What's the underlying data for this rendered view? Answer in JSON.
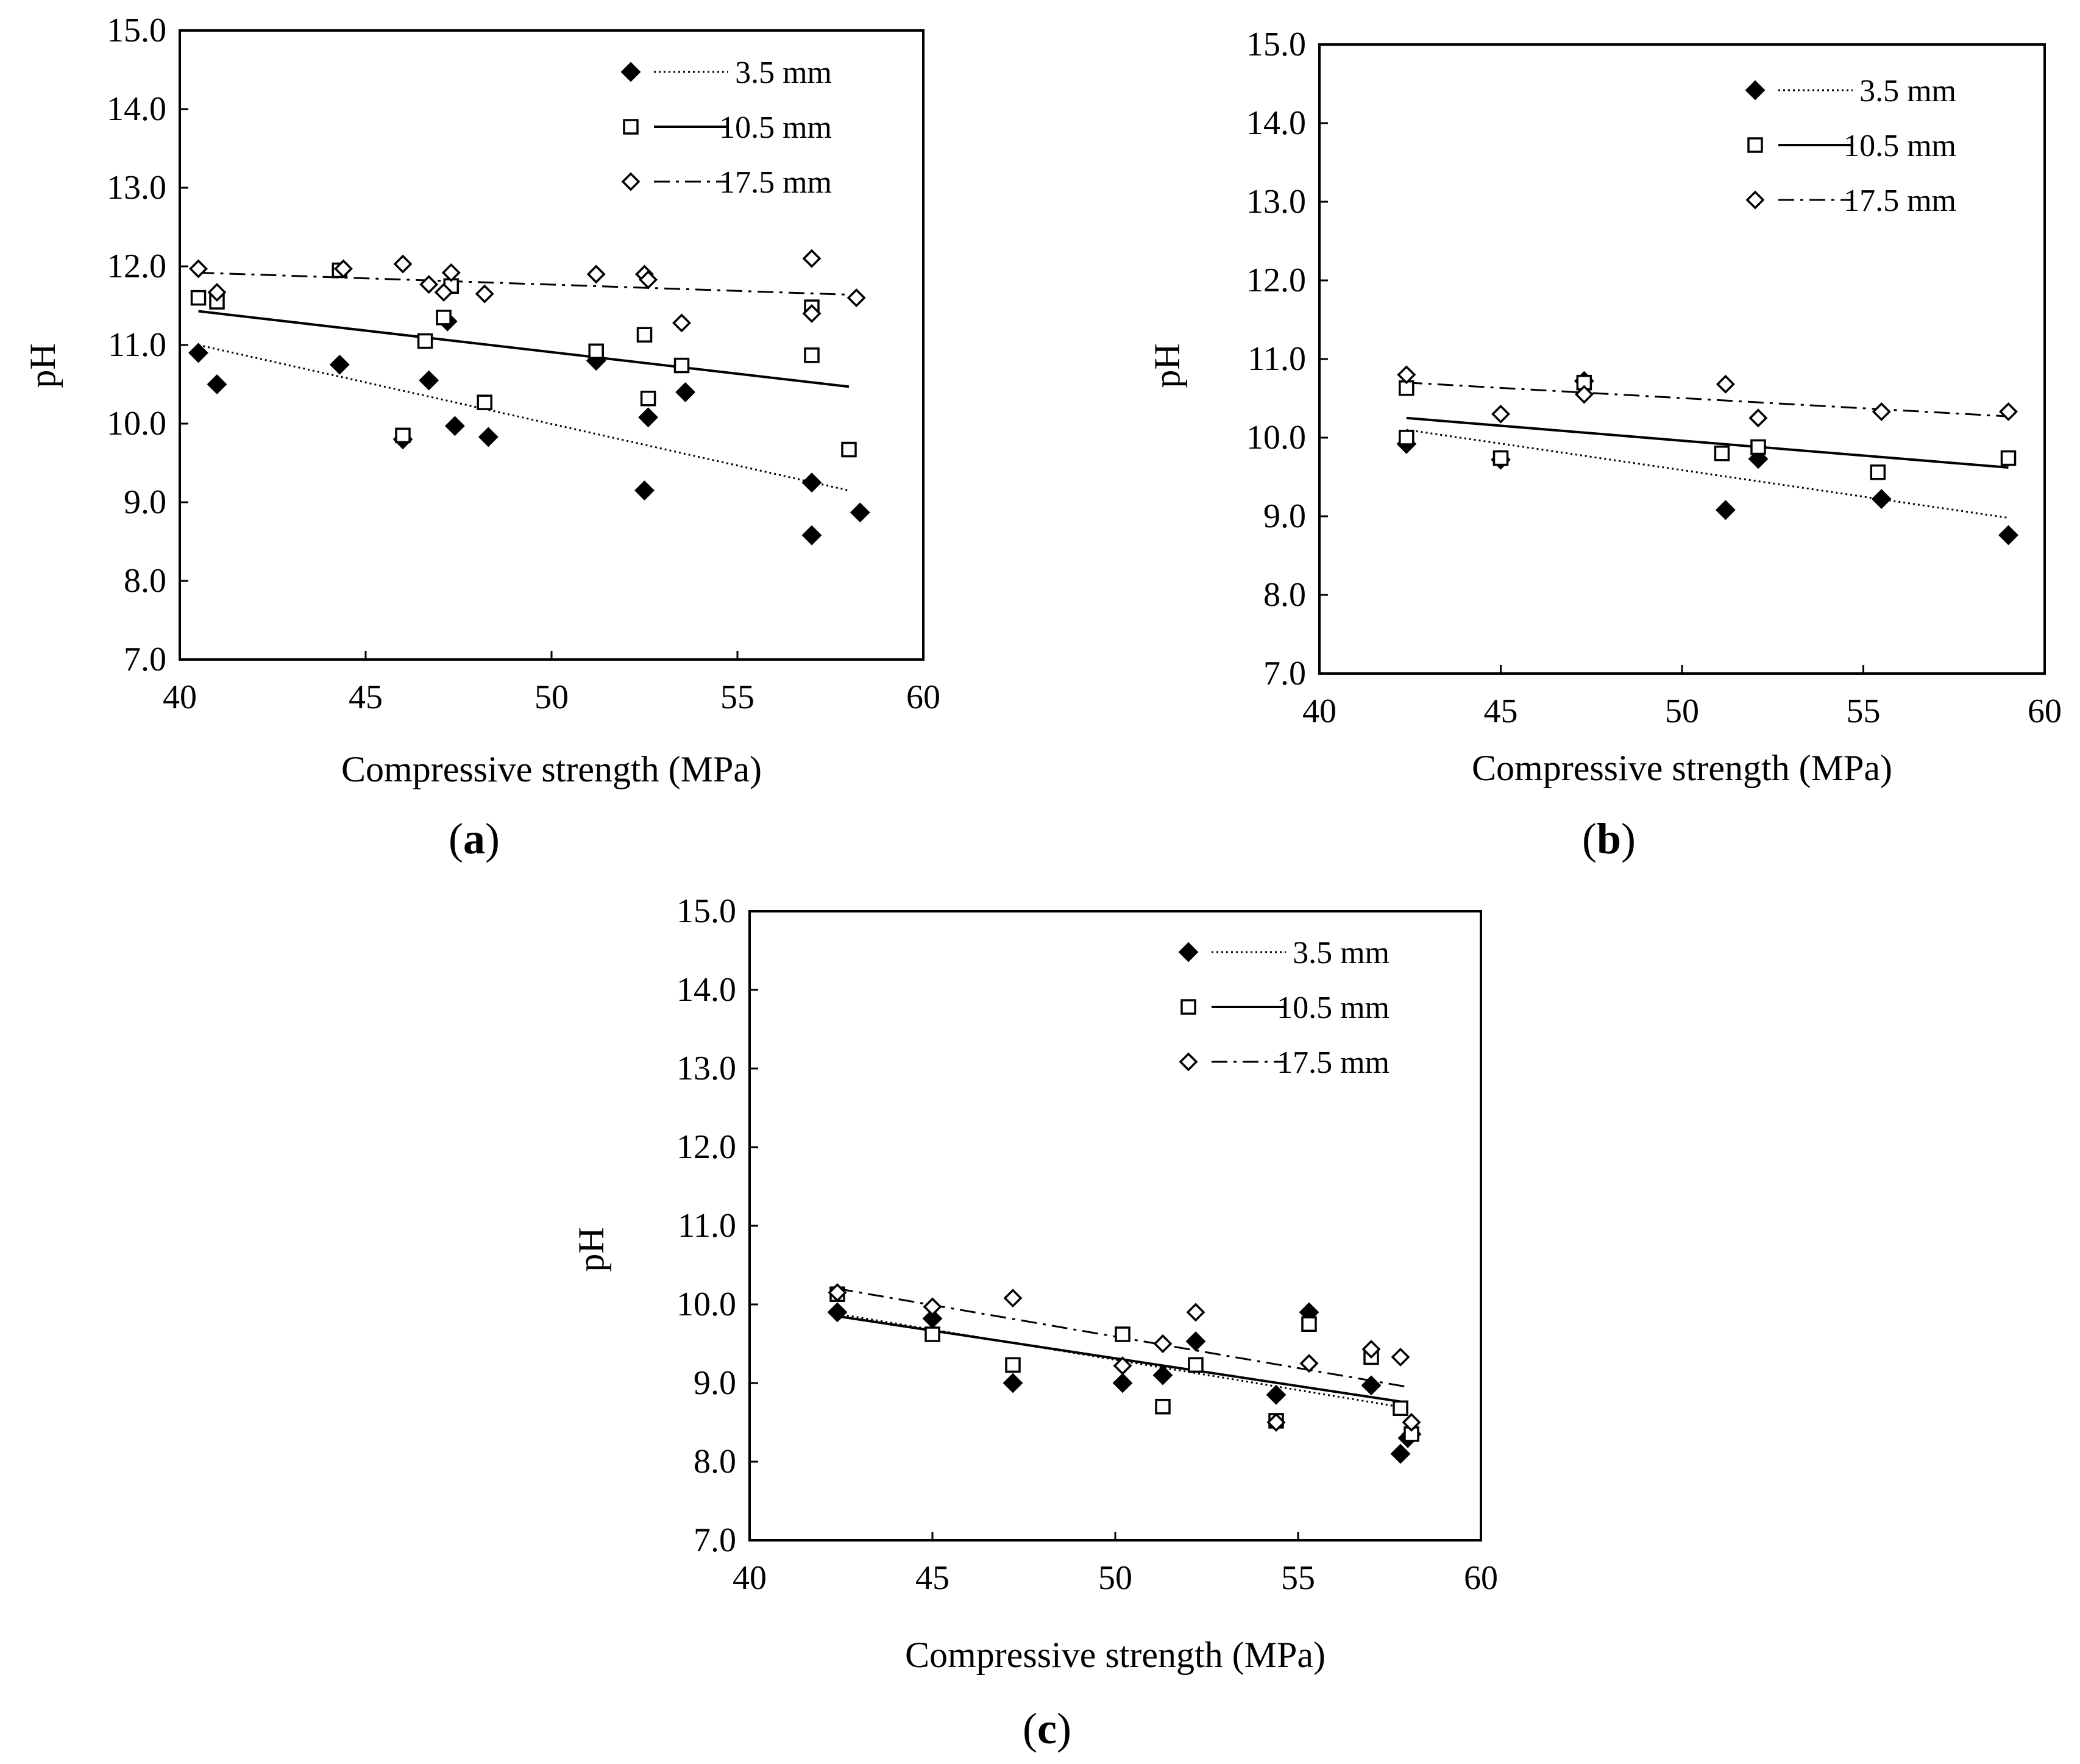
{
  "figure": {
    "panels": [
      "a",
      "b",
      "c"
    ]
  },
  "chart_data": [
    {
      "panel": "a",
      "label_open": "(",
      "label_letter": "a",
      "label_close": ")",
      "type": "scatter",
      "xlabel": "Compressive strength (MPa)",
      "ylabel": "pH",
      "xlim": [
        40,
        60
      ],
      "ylim": [
        7,
        15
      ],
      "xticks": [
        "40",
        "45",
        "50",
        "55",
        "60"
      ],
      "yticks": [
        "7.0",
        "8.0",
        "9.0",
        "10.0",
        "11.0",
        "12.0",
        "13.0",
        "14.0",
        "15.0"
      ],
      "legend_position": "top-right",
      "series": [
        {
          "name": "3.5 mm",
          "marker": "filled-diamond",
          "line": "dotted",
          "points": [
            [
              40.5,
              10.9
            ],
            [
              41.0,
              10.5
            ],
            [
              44.3,
              10.75
            ],
            [
              46.0,
              9.8
            ],
            [
              46.7,
              10.55
            ],
            [
              47.2,
              11.3
            ],
            [
              47.4,
              9.97
            ],
            [
              48.3,
              9.83
            ],
            [
              51.2,
              10.8
            ],
            [
              52.5,
              9.15
            ],
            [
              52.6,
              10.08
            ],
            [
              53.6,
              10.4
            ],
            [
              57.0,
              9.25
            ],
            [
              57.0,
              8.58
            ],
            [
              58.3,
              8.87
            ]
          ],
          "trend": [
            [
              40.5,
              11.0
            ],
            [
              58.0,
              9.15
            ]
          ]
        },
        {
          "name": "10.5 mm",
          "marker": "open-square",
          "line": "solid",
          "points": [
            [
              40.5,
              11.6
            ],
            [
              41.0,
              11.55
            ],
            [
              44.3,
              11.95
            ],
            [
              46.0,
              9.85
            ],
            [
              46.6,
              11.05
            ],
            [
              47.1,
              11.35
            ],
            [
              47.3,
              11.75
            ],
            [
              48.2,
              10.27
            ],
            [
              51.2,
              10.92
            ],
            [
              52.5,
              11.13
            ],
            [
              52.6,
              10.32
            ],
            [
              53.5,
              10.74
            ],
            [
              57.0,
              11.48
            ],
            [
              57.0,
              10.87
            ],
            [
              58.0,
              9.67
            ]
          ],
          "trend": [
            [
              40.5,
              11.43
            ],
            [
              58.0,
              10.47
            ]
          ]
        },
        {
          "name": "17.5 mm",
          "marker": "open-diamond",
          "line": "dashdot",
          "points": [
            [
              40.5,
              11.97
            ],
            [
              41.0,
              11.67
            ],
            [
              44.4,
              11.97
            ],
            [
              46.0,
              12.03
            ],
            [
              46.7,
              11.77
            ],
            [
              47.1,
              11.67
            ],
            [
              47.3,
              11.92
            ],
            [
              48.2,
              11.65
            ],
            [
              51.2,
              11.9
            ],
            [
              52.5,
              11.9
            ],
            [
              52.6,
              11.83
            ],
            [
              53.5,
              11.28
            ],
            [
              57.0,
              12.1
            ],
            [
              57.0,
              11.4
            ],
            [
              58.2,
              11.6
            ]
          ],
          "trend": [
            [
              40.5,
              11.92
            ],
            [
              58.0,
              11.64
            ]
          ]
        }
      ]
    },
    {
      "panel": "b",
      "label_open": "(",
      "label_letter": "b",
      "label_close": ")",
      "type": "scatter",
      "xlabel": "Compressive strength (MPa)",
      "ylabel": "pH",
      "xlim": [
        40,
        60
      ],
      "ylim": [
        7,
        15
      ],
      "xticks": [
        "40",
        "45",
        "50",
        "55",
        "60"
      ],
      "yticks": [
        "7.0",
        "8.0",
        "9.0",
        "10.0",
        "11.0",
        "12.0",
        "13.0",
        "14.0",
        "15.0"
      ],
      "legend_position": "top-right",
      "series": [
        {
          "name": "3.5 mm",
          "marker": "filled-diamond",
          "line": "dotted",
          "points": [
            [
              42.4,
              9.92
            ],
            [
              45.0,
              9.72
            ],
            [
              47.3,
              10.72
            ],
            [
              51.2,
              9.08
            ],
            [
              52.1,
              9.73
            ],
            [
              55.5,
              9.22
            ],
            [
              59.0,
              8.76
            ]
          ],
          "trend": [
            [
              42.4,
              10.1
            ],
            [
              59.0,
              8.98
            ]
          ]
        },
        {
          "name": "10.5 mm",
          "marker": "open-square",
          "line": "solid",
          "points": [
            [
              42.4,
              10.63
            ],
            [
              42.4,
              10.0
            ],
            [
              45.0,
              9.74
            ],
            [
              47.3,
              10.7
            ],
            [
              51.1,
              9.8
            ],
            [
              52.1,
              9.88
            ],
            [
              55.4,
              9.56
            ],
            [
              59.0,
              9.74
            ]
          ],
          "trend": [
            [
              42.4,
              10.25
            ],
            [
              59.0,
              9.62
            ]
          ]
        },
        {
          "name": "17.5 mm",
          "marker": "open-diamond",
          "line": "dashdot",
          "points": [
            [
              42.4,
              10.8
            ],
            [
              45.0,
              10.3
            ],
            [
              47.3,
              10.55
            ],
            [
              51.2,
              10.68
            ],
            [
              52.1,
              10.25
            ],
            [
              55.5,
              10.33
            ],
            [
              59.0,
              10.33
            ]
          ],
          "trend": [
            [
              42.4,
              10.7
            ],
            [
              59.0,
              10.27
            ]
          ]
        }
      ]
    },
    {
      "panel": "c",
      "label_open": "(",
      "label_letter": "c",
      "label_close": ")",
      "type": "scatter",
      "xlabel": "Compressive strength (MPa)",
      "ylabel": "pH",
      "xlim": [
        40,
        60
      ],
      "ylim": [
        7,
        15
      ],
      "xticks": [
        "40",
        "45",
        "50",
        "55",
        "60"
      ],
      "yticks": [
        "7.0",
        "8.0",
        "9.0",
        "10.0",
        "11.0",
        "12.0",
        "13.0",
        "14.0",
        "15.0"
      ],
      "legend_position": "top-right",
      "series": [
        {
          "name": "3.5 mm",
          "marker": "filled-diamond",
          "line": "dotted",
          "points": [
            [
              42.4,
              9.9
            ],
            [
              45.0,
              9.82
            ],
            [
              47.2,
              9.0
            ],
            [
              50.2,
              9.0
            ],
            [
              51.3,
              9.1
            ],
            [
              52.2,
              9.53
            ],
            [
              54.4,
              8.85
            ],
            [
              55.3,
              9.9
            ],
            [
              57.0,
              8.97
            ],
            [
              57.8,
              8.1
            ],
            [
              58.0,
              8.3
            ],
            [
              58.1,
              8.35
            ]
          ],
          "trend": [
            [
              42.4,
              9.88
            ],
            [
              58.0,
              8.68
            ]
          ]
        },
        {
          "name": "10.5 mm",
          "marker": "open-square",
          "line": "solid",
          "points": [
            [
              42.4,
              10.13
            ],
            [
              45.0,
              9.62
            ],
            [
              47.2,
              9.23
            ],
            [
              50.2,
              9.62
            ],
            [
              51.3,
              8.7
            ],
            [
              52.2,
              9.23
            ],
            [
              54.4,
              8.52
            ],
            [
              55.3,
              9.75
            ],
            [
              57.0,
              9.33
            ],
            [
              57.8,
              8.68
            ],
            [
              58.1,
              8.35
            ]
          ],
          "trend": [
            [
              42.4,
              9.85
            ],
            [
              58.0,
              8.75
            ]
          ]
        },
        {
          "name": "17.5 mm",
          "marker": "open-diamond",
          "line": "dashdot",
          "points": [
            [
              42.4,
              10.15
            ],
            [
              45.0,
              9.97
            ],
            [
              47.2,
              10.08
            ],
            [
              50.2,
              9.22
            ],
            [
              51.3,
              9.5
            ],
            [
              52.2,
              9.9
            ],
            [
              54.4,
              8.5
            ],
            [
              55.3,
              9.25
            ],
            [
              57.0,
              9.43
            ],
            [
              57.8,
              9.33
            ],
            [
              58.1,
              8.5
            ]
          ],
          "trend": [
            [
              42.4,
              10.2
            ],
            [
              58.0,
              8.95
            ]
          ]
        }
      ]
    }
  ]
}
